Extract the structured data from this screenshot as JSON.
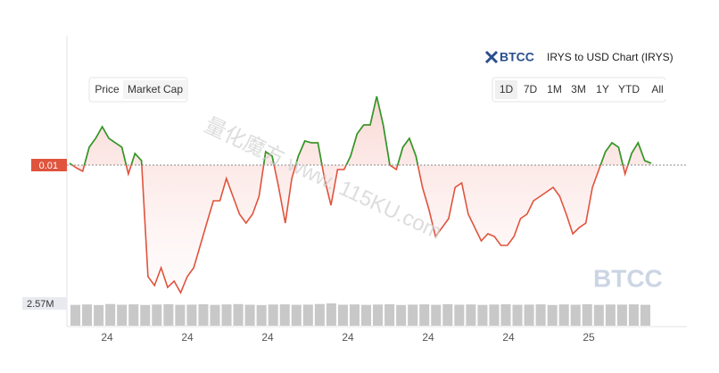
{
  "header": {
    "logo": "BTCC",
    "title": "IRYS to USD Chart (IRYS)"
  },
  "toggles": [
    "Price",
    "Market Cap"
  ],
  "ranges": [
    "1D",
    "7D",
    "1M",
    "3M",
    "1Y",
    "YTD",
    "All"
  ],
  "watermarks": {
    "text": "量化魔方 www. 115KU.com",
    "logo": "BTCC"
  },
  "chart_data": {
    "type": "line",
    "ylim": [
      0.0088,
      0.01116
    ],
    "yticks": [
      0.01
    ],
    "up_color": "#2a9d2a",
    "down_color": "#e0533d",
    "values": [
      0.010016,
      0.009976,
      0.009944,
      0.01016,
      0.01024,
      0.010344,
      0.01024,
      0.0102,
      0.01016,
      0.00992,
      0.010104,
      0.01004,
      0.009,
      0.00892,
      0.00908,
      0.008904,
      0.00896,
      0.008856,
      0.009,
      0.00908,
      0.00928,
      0.00948,
      0.00968,
      0.00968,
      0.00988,
      0.00972,
      0.00956,
      0.00948,
      0.00956,
      0.00972,
      0.01012,
      0.01008,
      0.0098,
      0.00948,
      0.00988,
      0.01008,
      0.010216,
      0.0102,
      0.0102,
      0.00988,
      0.00964,
      0.00996,
      0.00996,
      0.01008,
      0.01028,
      0.01036,
      0.01036,
      0.010616,
      0.01036,
      0.01,
      0.00996,
      0.01016,
      0.01024,
      0.01008,
      0.0098,
      0.0096,
      0.00936,
      0.00944,
      0.00952,
      0.0098,
      0.00984,
      0.00956,
      0.00944,
      0.00932,
      0.009384,
      0.00936,
      0.00928,
      0.00928,
      0.00936,
      0.00952,
      0.00956,
      0.00968,
      0.00972,
      0.00976,
      0.0098,
      0.00972,
      0.00956,
      0.009384,
      0.00944,
      0.00948,
      0.0098,
      0.00996,
      0.01012,
      0.0102,
      0.01016,
      0.00992,
      0.010104,
      0.0102,
      0.01004,
      0.010016
    ],
    "x_tick_labels": [
      "24",
      "24",
      "24",
      "24",
      "24",
      "24",
      "25"
    ],
    "volume": {
      "ylim": [
        0,
        2570000
      ],
      "yticks": [
        {
          "value": 2570000,
          "label": "2.57M"
        }
      ],
      "color": "#c8c8c8",
      "values": [
        2400000,
        2450000,
        2380000,
        2500000,
        2420000,
        2460000,
        2390000,
        2440000,
        2480000,
        2410000,
        2430000,
        2470000,
        2400000,
        2450000,
        2490000,
        2420000,
        2380000,
        2440000,
        2460000,
        2410000,
        2430000,
        2500000,
        2570000,
        2420000,
        2450000,
        2400000,
        2440000,
        2470000,
        2390000,
        2430000,
        2460000,
        2410000,
        2480000,
        2420000,
        2450000,
        2400000,
        2440000,
        2470000,
        2410000,
        2430000,
        2460000,
        2390000,
        2450000,
        2420000,
        2480000,
        2400000,
        2440000,
        2430000,
        2460000,
        2410000
      ]
    }
  }
}
